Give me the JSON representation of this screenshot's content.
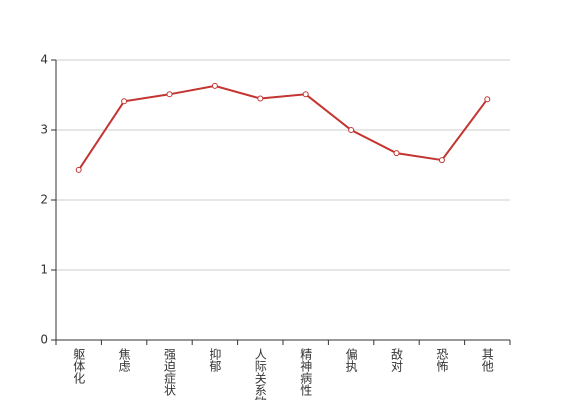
{
  "chart_data": {
    "type": "line",
    "categories": [
      "躯体化",
      "焦虑",
      "强迫症状",
      "抑郁",
      "人际关系敏感",
      "精神病性",
      "偏执",
      "敌对",
      "恐怖",
      "其他"
    ],
    "series": [
      {
        "color": "#c23531",
        "values": [
          2.43,
          3.41,
          3.51,
          3.63,
          3.45,
          3.51,
          3.0,
          2.67,
          2.57,
          3.44
        ]
      }
    ],
    "ylim": [
      0,
      4
    ],
    "yticks": [
      0,
      1,
      2,
      3,
      4
    ],
    "grid": true
  }
}
